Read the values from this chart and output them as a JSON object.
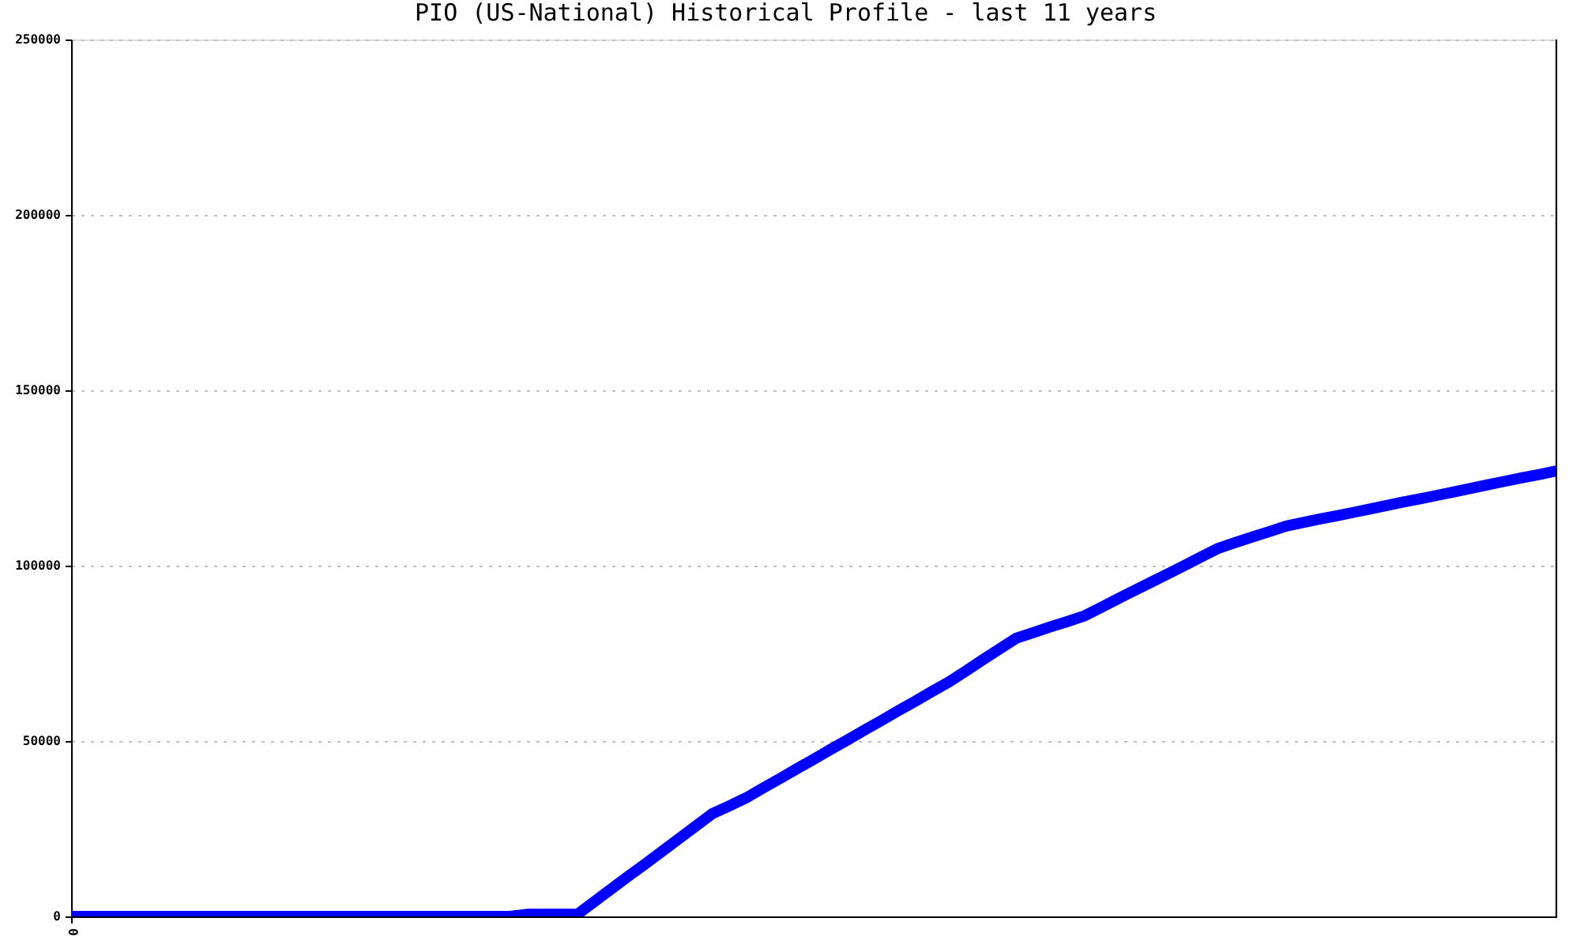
{
  "chart_data": {
    "type": "line",
    "title": "PIO (US-National) Historical Profile - last 11 years",
    "categories": [
      "0",
      null,
      null,
      null,
      null,
      null,
      null,
      null,
      null,
      null,
      null,
      null,
      null,
      null,
      null,
      null,
      null,
      null,
      null,
      null,
      null,
      null,
      null,
      null,
      null,
      null,
      null,
      null,
      null,
      null,
      null,
      null,
      null,
      null,
      null,
      null,
      null,
      null,
      null,
      null,
      null,
      null,
      null,
      null,
      null,
      null,
      null,
      null,
      null,
      null,
      null,
      null,
      null,
      null,
      null,
      null,
      null,
      null,
      null,
      null,
      null,
      null,
      null,
      null,
      null,
      null,
      null,
      null,
      null,
      null,
      null,
      null,
      null,
      null,
      null,
      null,
      null,
      null,
      null,
      null,
      null,
      null,
      null,
      null,
      null,
      null,
      null,
      null,
      null
    ],
    "series": [
      {
        "color": "#0000ff",
        "values": [
          0,
          0,
          0,
          0,
          0,
          0,
          0,
          0,
          0,
          0,
          0,
          0,
          0,
          0,
          0,
          0,
          0,
          0,
          0,
          0,
          0,
          0,
          0,
          0,
          0,
          0,
          0,
          600,
          600,
          600,
          600,
          4200,
          7800,
          11400,
          14900,
          18500,
          22100,
          25700,
          29300,
          31500,
          33800,
          36600,
          39300,
          42100,
          44800,
          47600,
          50300,
          53100,
          55800,
          58600,
          61300,
          64100,
          66800,
          69900,
          73100,
          76200,
          79300,
          80900,
          82500,
          84000,
          85600,
          88000,
          90500,
          92900,
          95300,
          97700,
          100100,
          102600,
          105000,
          106600,
          108200,
          109700,
          111300,
          112300,
          113300,
          114200,
          115200,
          116200,
          117200,
          118200,
          119100,
          120100,
          121100,
          122100,
          123100,
          124100,
          125100,
          126000,
          127000
        ]
      }
    ],
    "ylim": [
      0,
      250000
    ],
    "yticks": [
      0,
      50000,
      100000,
      150000,
      200000,
      250000
    ],
    "grid": "y"
  }
}
